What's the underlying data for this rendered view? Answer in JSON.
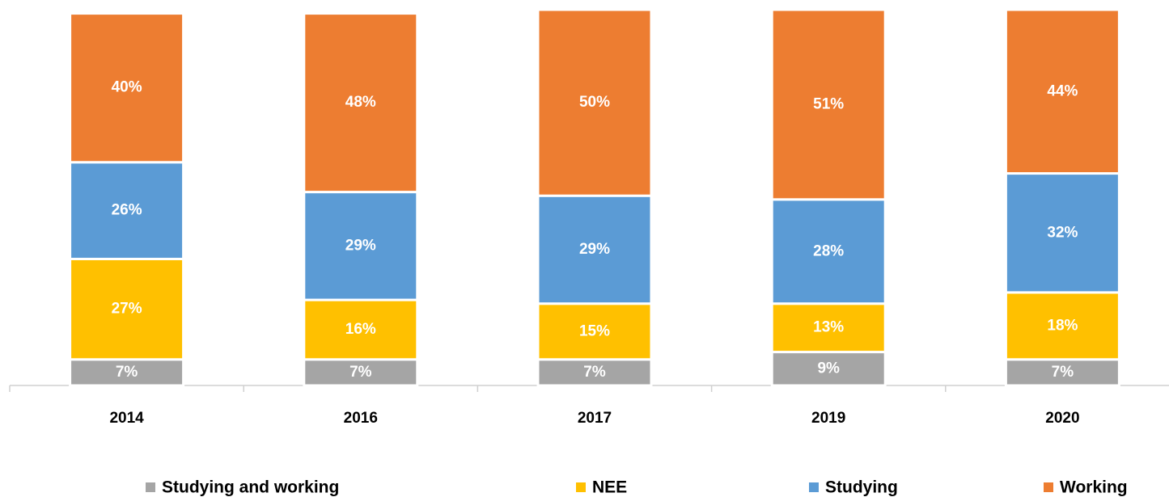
{
  "chart_data": {
    "type": "stacked_bar",
    "categories": [
      "2014",
      "2016",
      "2017",
      "2019",
      "2020"
    ],
    "series": [
      {
        "name": "Studying and working",
        "color": "#a5a5a5",
        "values": [
          7,
          7,
          7,
          9,
          7
        ],
        "value_labels": [
          "7%",
          "7%",
          "7%",
          "9%",
          "7%"
        ]
      },
      {
        "name": "NEE",
        "color": "#ffc000",
        "values": [
          27,
          16,
          15,
          13,
          18
        ],
        "value_labels": [
          "27%",
          "16%",
          "15%",
          "13%",
          "18%"
        ]
      },
      {
        "name": "Studying",
        "color": "#5b9bd5",
        "values": [
          26,
          29,
          29,
          28,
          32
        ],
        "value_labels": [
          "26%",
          "29%",
          "29%",
          "28%",
          "32%"
        ]
      },
      {
        "name": "Working",
        "color": "#ed7d31",
        "values": [
          40,
          48,
          50,
          51,
          44
        ],
        "value_labels": [
          "40%",
          "48%",
          "50%",
          "51%",
          "44%"
        ]
      }
    ],
    "ylim": [
      0,
      101
    ],
    "legend": "bottom"
  }
}
